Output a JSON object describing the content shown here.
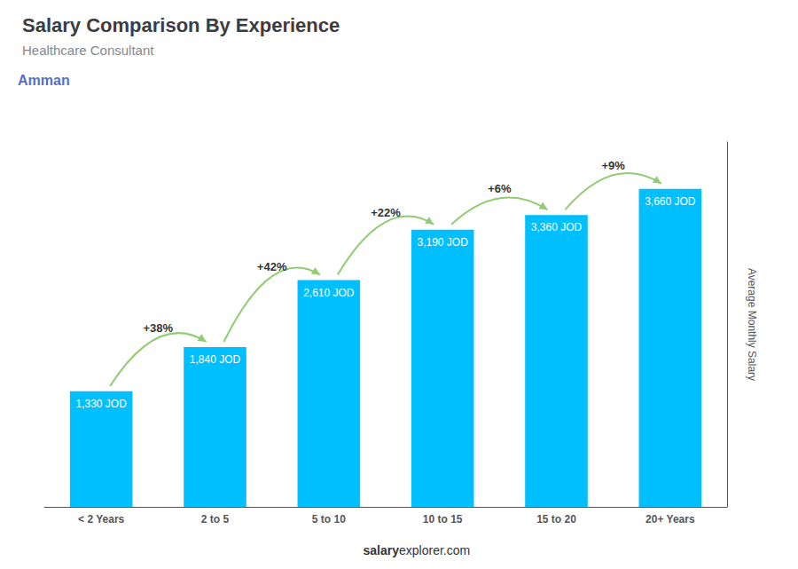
{
  "chart_data": {
    "type": "bar",
    "title": "Salary Comparison By Experience",
    "subtitle": "Healthcare Consultant",
    "city": "Amman",
    "ylabel": "Average Monthly Salary",
    "categories": [
      "< 2 Years",
      "2 to 5",
      "5 to 10",
      "10 to 15",
      "15 to 20",
      "20+ Years"
    ],
    "values": [
      1330,
      1840,
      2610,
      3190,
      3360,
      3660
    ],
    "value_labels": [
      "1,330 JOD",
      "1,840 JOD",
      "2,610 JOD",
      "3,190 JOD",
      "3,360 JOD",
      "3,660 JOD"
    ],
    "data_labels": true,
    "pct_changes": [
      "+38%",
      "+42%",
      "+22%",
      "+6%",
      "+9%"
    ],
    "watermark": [
      "salary",
      "explorer.com"
    ],
    "color": "#00bfff",
    "ylim": [
      0,
      4200
    ],
    "grid": false,
    "tick_labels": "x"
  }
}
